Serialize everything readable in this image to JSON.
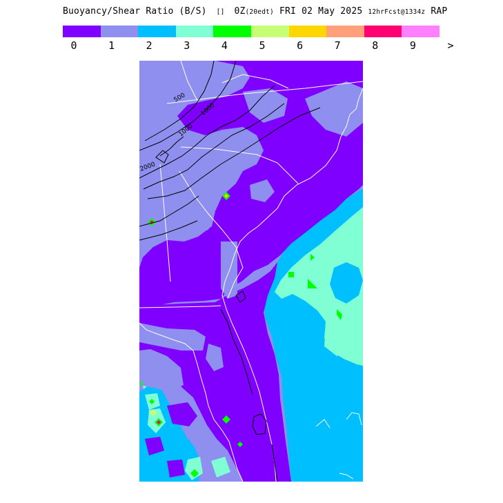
{
  "title": {
    "product": "Buoyancy/Shear Ratio (B/S)",
    "valid": "0Z",
    "valid_note": "(20edt)",
    "date": "FRI 02 May 2025",
    "forecast": "12hrFcst@1334z",
    "model": "RAP"
  },
  "legend": {
    "labels": [
      "0",
      "1",
      "2",
      "3",
      "4",
      "5",
      "6",
      "7",
      "8",
      "9",
      ">"
    ],
    "colors": [
      "#7f00ff",
      "#8f8fef",
      "#00bfff",
      "#80ffd5",
      "#00ff00",
      "#c6ff75",
      "#ffd700",
      "#ffa07a",
      "#ff0070",
      "#ff80ff"
    ]
  },
  "map": {
    "contour_labels": [
      "2000",
      "1000",
      "1000",
      "500"
    ]
  }
}
